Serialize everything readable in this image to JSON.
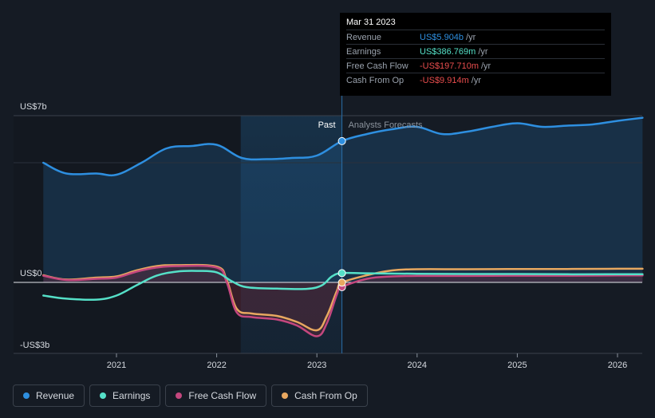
{
  "chart_data": {
    "type": "line",
    "y_tick_labels": [
      "US$7b",
      "US$0",
      "-US$3b"
    ],
    "ylim": [
      -3,
      7
    ],
    "x_tick_labels": [
      "2021",
      "2022",
      "2023",
      "2024",
      "2025",
      "2026"
    ],
    "past_label": "Past",
    "forecast_label": "Analysts Forecasts",
    "series": [
      {
        "name": "Revenue",
        "color": "#2e8fe0",
        "points": [
          [
            2020.27,
            5.0
          ],
          [
            2020.5,
            4.55
          ],
          [
            2020.8,
            4.55
          ],
          [
            2021.0,
            4.5
          ],
          [
            2021.25,
            5.0
          ],
          [
            2021.5,
            5.6
          ],
          [
            2021.75,
            5.7
          ],
          [
            2022.0,
            5.75
          ],
          [
            2022.25,
            5.2
          ],
          [
            2022.5,
            5.15
          ],
          [
            2022.75,
            5.2
          ],
          [
            2023.0,
            5.3
          ],
          [
            2023.25,
            5.904
          ],
          [
            2023.5,
            6.2
          ],
          [
            2023.75,
            6.4
          ],
          [
            2024.0,
            6.5
          ],
          [
            2024.25,
            6.2
          ],
          [
            2024.5,
            6.3
          ],
          [
            2024.75,
            6.5
          ],
          [
            2025.0,
            6.65
          ],
          [
            2025.25,
            6.5
          ],
          [
            2025.5,
            6.55
          ],
          [
            2025.75,
            6.6
          ],
          [
            2026.0,
            6.75
          ],
          [
            2026.25,
            6.88
          ]
        ]
      },
      {
        "name": "Earnings",
        "color": "#55e0c8",
        "points": [
          [
            2020.27,
            -0.55
          ],
          [
            2020.5,
            -0.68
          ],
          [
            2020.8,
            -0.72
          ],
          [
            2021.0,
            -0.55
          ],
          [
            2021.2,
            -0.12
          ],
          [
            2021.4,
            0.28
          ],
          [
            2021.6,
            0.45
          ],
          [
            2021.8,
            0.48
          ],
          [
            2022.0,
            0.42
          ],
          [
            2022.15,
            0.05
          ],
          [
            2022.3,
            -0.2
          ],
          [
            2022.6,
            -0.26
          ],
          [
            2022.9,
            -0.27
          ],
          [
            2023.05,
            -0.12
          ],
          [
            2023.15,
            0.25
          ],
          [
            2023.25,
            0.387
          ],
          [
            2023.5,
            0.38
          ],
          [
            2024.0,
            0.36
          ],
          [
            2024.5,
            0.35
          ],
          [
            2025.0,
            0.35
          ],
          [
            2025.5,
            0.34
          ],
          [
            2026.0,
            0.34
          ],
          [
            2026.25,
            0.34
          ]
        ]
      },
      {
        "name": "Free Cash Flow",
        "color": "#c4477e",
        "points": [
          [
            2020.27,
            0.28
          ],
          [
            2020.5,
            0.1
          ],
          [
            2020.8,
            0.15
          ],
          [
            2021.0,
            0.2
          ],
          [
            2021.2,
            0.45
          ],
          [
            2021.4,
            0.62
          ],
          [
            2021.6,
            0.68
          ],
          [
            2022.0,
            0.62
          ],
          [
            2022.1,
            0.0
          ],
          [
            2022.2,
            -1.25
          ],
          [
            2022.35,
            -1.45
          ],
          [
            2022.6,
            -1.55
          ],
          [
            2022.8,
            -1.8
          ],
          [
            2023.0,
            -2.25
          ],
          [
            2023.1,
            -1.7
          ],
          [
            2023.2,
            -0.5
          ],
          [
            2023.25,
            -0.198
          ],
          [
            2023.5,
            0.15
          ],
          [
            2023.75,
            0.25
          ],
          [
            2024.0,
            0.27
          ],
          [
            2024.5,
            0.27
          ],
          [
            2025.0,
            0.28
          ],
          [
            2025.5,
            0.28
          ],
          [
            2026.0,
            0.29
          ],
          [
            2026.25,
            0.29
          ]
        ]
      },
      {
        "name": "Cash From Op",
        "color": "#e8a860",
        "points": [
          [
            2020.27,
            0.3
          ],
          [
            2020.5,
            0.12
          ],
          [
            2020.8,
            0.2
          ],
          [
            2021.0,
            0.25
          ],
          [
            2021.2,
            0.5
          ],
          [
            2021.4,
            0.68
          ],
          [
            2021.6,
            0.72
          ],
          [
            2022.0,
            0.66
          ],
          [
            2022.1,
            0.1
          ],
          [
            2022.2,
            -1.1
          ],
          [
            2022.35,
            -1.3
          ],
          [
            2022.6,
            -1.4
          ],
          [
            2022.8,
            -1.65
          ],
          [
            2023.0,
            -2.0
          ],
          [
            2023.1,
            -1.4
          ],
          [
            2023.2,
            -0.35
          ],
          [
            2023.25,
            -0.01
          ],
          [
            2023.5,
            0.3
          ],
          [
            2023.75,
            0.5
          ],
          [
            2024.0,
            0.55
          ],
          [
            2024.5,
            0.55
          ],
          [
            2025.0,
            0.56
          ],
          [
            2025.5,
            0.56
          ],
          [
            2026.0,
            0.57
          ],
          [
            2026.25,
            0.57
          ]
        ]
      }
    ],
    "highlight_date": 2023.25,
    "shaded_period": [
      2022.24,
      2023.25
    ]
  },
  "tooltip": {
    "date": "Mar 31 2023",
    "rows": [
      {
        "label": "Revenue",
        "value": "US$5.904b",
        "unit": "/yr",
        "color": "#2e8fe0"
      },
      {
        "label": "Earnings",
        "value": "US$386.769m",
        "unit": "/yr",
        "color": "#55e0c8"
      },
      {
        "label": "Free Cash Flow",
        "value": "-US$197.710m",
        "unit": "/yr",
        "color": "#e84d4d"
      },
      {
        "label": "Cash From Op",
        "value": "-US$9.914m",
        "unit": "/yr",
        "color": "#e84d4d"
      }
    ]
  },
  "legend": [
    {
      "label": "Revenue",
      "color": "#2e8fe0"
    },
    {
      "label": "Earnings",
      "color": "#55e0c8"
    },
    {
      "label": "Free Cash Flow",
      "color": "#c4477e"
    },
    {
      "label": "Cash From Op",
      "color": "#e8a860"
    }
  ]
}
